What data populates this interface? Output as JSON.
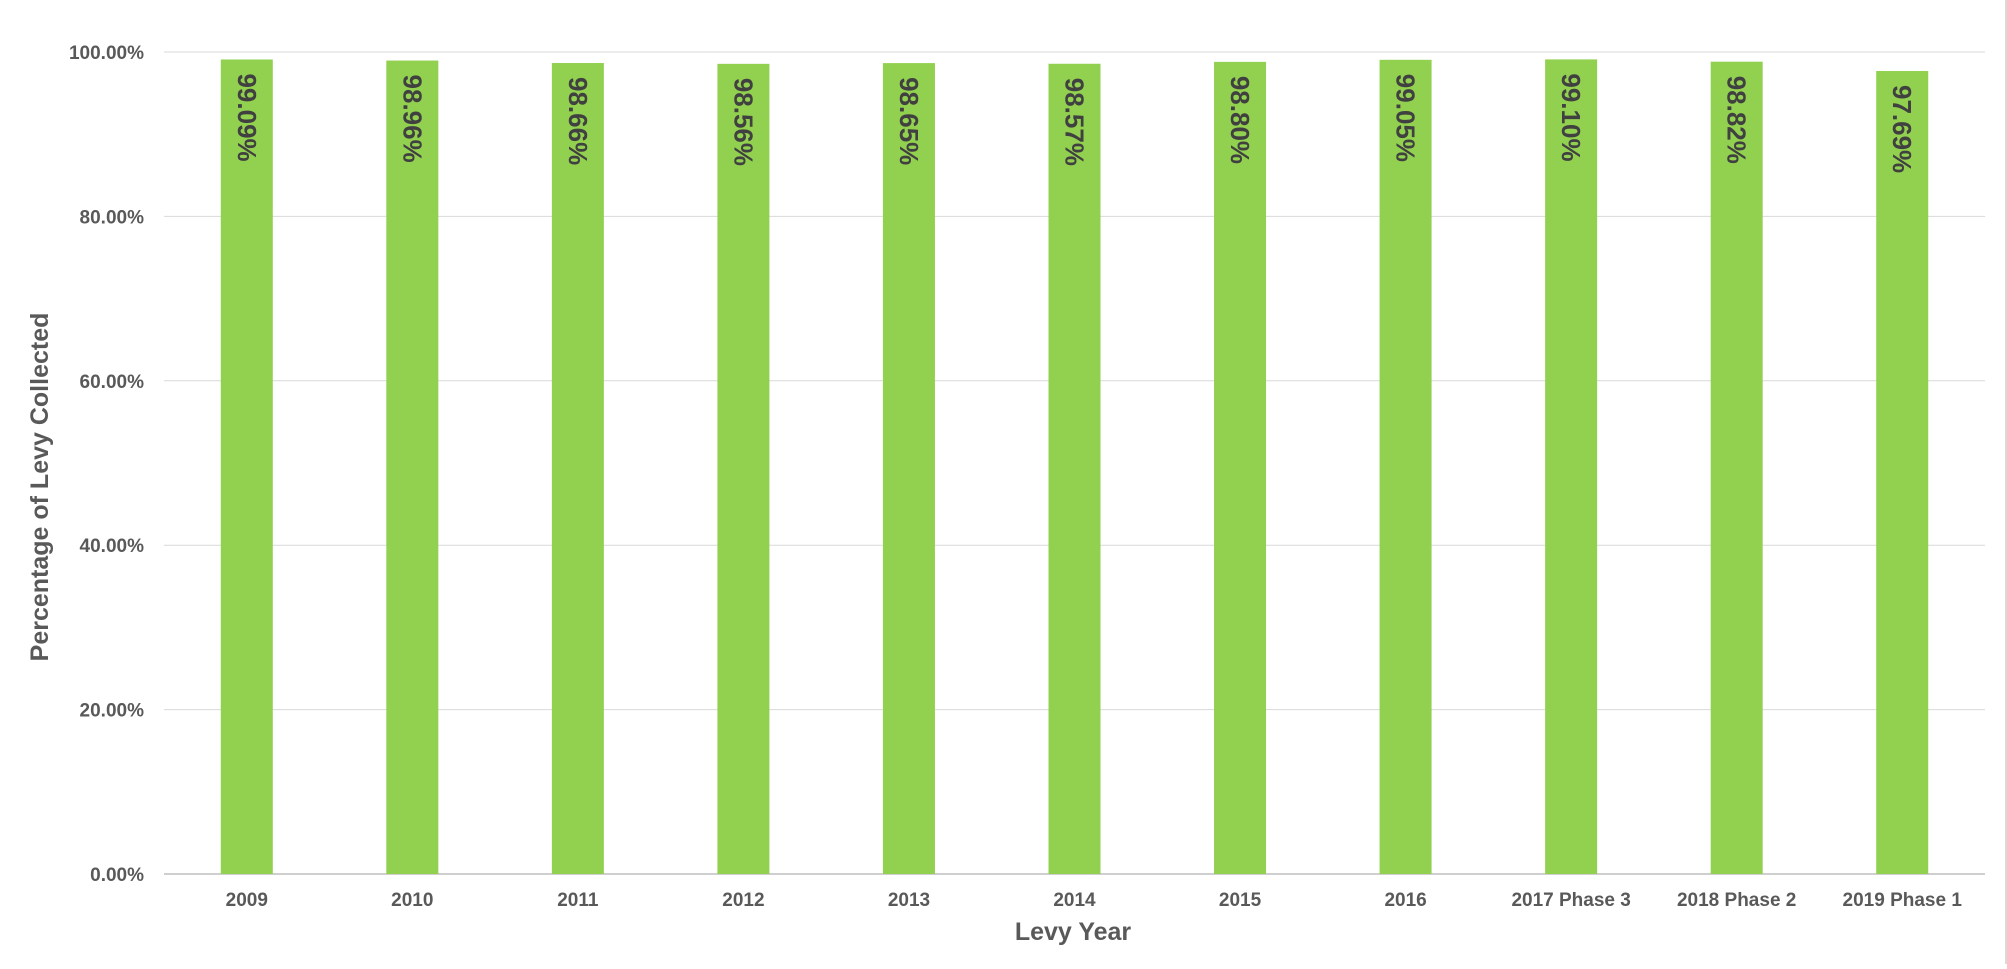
{
  "chart_data": {
    "type": "bar",
    "title": "",
    "xlabel": "Levy Year",
    "ylabel": "Percentage of Levy Collected",
    "categories": [
      "2009",
      "2010",
      "2011",
      "2012",
      "2013",
      "2014",
      "2015",
      "2016",
      "2017 Phase 3",
      "2018 Phase 2",
      "2019 Phase 1"
    ],
    "series": [
      {
        "values": [
          99.09,
          98.96,
          98.66,
          98.56,
          98.65,
          98.57,
          98.8,
          99.05,
          99.1,
          98.82,
          97.69
        ],
        "labels": [
          "99.09%",
          "98.96%",
          "98.66%",
          "98.56%",
          "98.65%",
          "98.57%",
          "98.80%",
          "99.05%",
          "99.10%",
          "98.82%",
          "97.69%"
        ],
        "color": "#92d050"
      }
    ],
    "yticks": [
      "0.00%",
      "20.00%",
      "40.00%",
      "60.00%",
      "80.00%",
      "100.00%"
    ],
    "ylim": [
      0,
      100
    ],
    "grid": true,
    "legend": "none",
    "gridline_color": "#d9d9d9",
    "axis_color": "#bfbfbf"
  }
}
